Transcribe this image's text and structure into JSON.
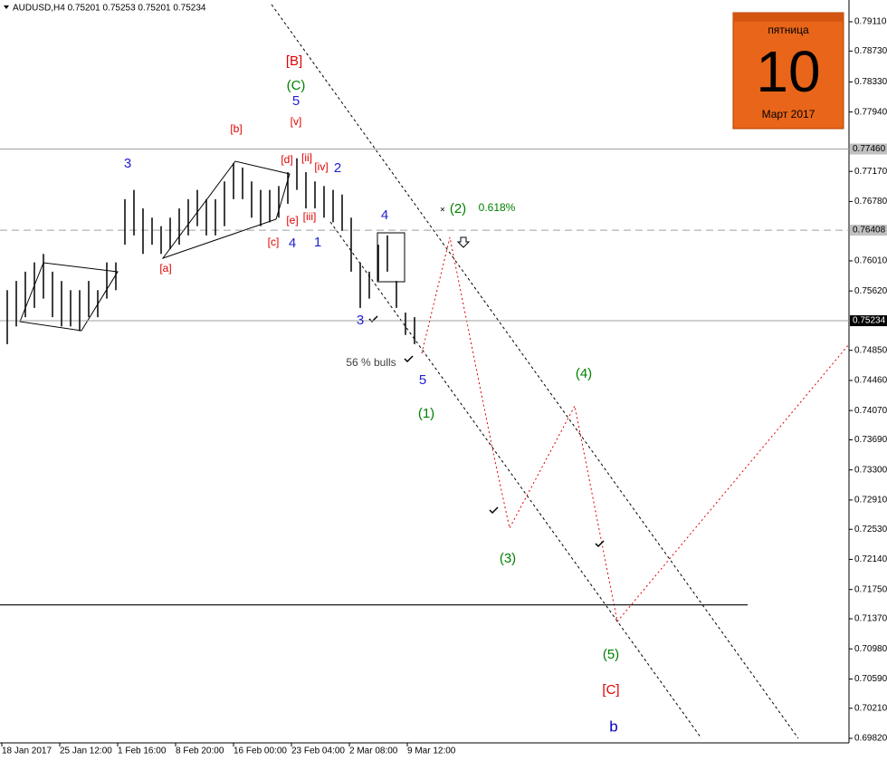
{
  "chart_data": {
    "type": "ohlc",
    "title": "AUDUSD,H4  0.75201 0.75253 0.75201 0.75234",
    "ylim": [
      0.6982,
      0.7911
    ],
    "yticks": [
      {
        "value": 0.7911,
        "label": "0.79110"
      },
      {
        "value": 0.7873,
        "label": "0.78730"
      },
      {
        "value": 0.7833,
        "label": "0.78330"
      },
      {
        "value": 0.7794,
        "label": "0.77940"
      },
      {
        "value": 0.7717,
        "label": "0.77170"
      },
      {
        "value": 0.7678,
        "label": "0.76780"
      },
      {
        "value": 0.7601,
        "label": "0.76010"
      },
      {
        "value": 0.7562,
        "label": "0.75620"
      },
      {
        "value": 0.7485,
        "label": "0.74850"
      },
      {
        "value": 0.7446,
        "label": "0.74460"
      },
      {
        "value": 0.7407,
        "label": "0.74070"
      },
      {
        "value": 0.7369,
        "label": "0.73690"
      },
      {
        "value": 0.733,
        "label": "0.73300"
      },
      {
        "value": 0.7291,
        "label": "0.72910"
      },
      {
        "value": 0.7253,
        "label": "0.72530"
      },
      {
        "value": 0.7214,
        "label": "0.72140"
      },
      {
        "value": 0.7175,
        "label": "0.71750"
      },
      {
        "value": 0.7137,
        "label": "0.71370"
      },
      {
        "value": 0.7098,
        "label": "0.70980"
      },
      {
        "value": 0.7059,
        "label": "0.70590"
      },
      {
        "value": 0.7021,
        "label": "0.70210"
      },
      {
        "value": 0.6982,
        "label": "0.69820"
      }
    ],
    "levels": [
      {
        "value": 0.7746,
        "label": "0.77460",
        "style": "solid"
      },
      {
        "value": 0.76408,
        "label": "0.76408",
        "style": "dashed"
      },
      {
        "value": 0.75234,
        "label": "0.75234",
        "style": "current"
      }
    ],
    "support_line": 0.7155,
    "x_labels": [
      "18 Jan 2017",
      "25 Jan 12:00",
      "1 Feb 16:00",
      "8 Feb 20:00",
      "16 Feb 00:00",
      "23 Feb 04:00",
      "2 Mar 08:00",
      "9 Mar 12:00"
    ],
    "series": [
      {
        "name": "AUDUSD",
        "color": "#000000",
        "high": [
          0.7563,
          0.7575,
          0.7587,
          0.7599,
          0.761,
          0.7587,
          0.7575,
          0.7563,
          0.7563,
          0.7575,
          0.7563,
          0.7599,
          0.7599,
          0.7681,
          0.7693,
          0.7669,
          0.7657,
          0.7646,
          0.7657,
          0.7669,
          0.7681,
          0.7693,
          0.7681,
          0.7681,
          0.7704,
          0.7728,
          0.7722,
          0.7704,
          0.7693,
          0.7693,
          0.7698,
          0.7716,
          0.7734,
          0.7716,
          0.7704,
          0.7698,
          0.7693,
          0.7687,
          0.7657,
          0.7599,
          0.7587,
          0.7622,
          0.7634,
          0.7575,
          0.7534,
          0.7528
        ],
        "low": [
          0.7493,
          0.7516,
          0.7528,
          0.754,
          0.7552,
          0.7528,
          0.7516,
          0.7516,
          0.751,
          0.7528,
          0.7528,
          0.7552,
          0.7563,
          0.7622,
          0.7634,
          0.761,
          0.7622,
          0.761,
          0.7616,
          0.7622,
          0.7634,
          0.7646,
          0.7634,
          0.7634,
          0.7646,
          0.7681,
          0.7681,
          0.7657,
          0.7646,
          0.7651,
          0.7657,
          0.7675,
          0.7693,
          0.7669,
          0.7669,
          0.7657,
          0.7651,
          0.764,
          0.7587,
          0.754,
          0.7552,
          0.7575,
          0.7587,
          0.754,
          0.7505,
          0.7493
        ]
      }
    ],
    "annotations": [
      {
        "text": "[B]",
        "color": "#e00000"
      },
      {
        "text": "(C)",
        "color": "#008000"
      },
      {
        "text": "5",
        "color": "#2020d0"
      },
      {
        "text": "[v]",
        "color": "#e00000"
      },
      {
        "text": "[b]",
        "color": "#e00000"
      },
      {
        "text": "3",
        "color": "#2020d0"
      },
      {
        "text": "[d]",
        "color": "#e00000"
      },
      {
        "text": "[ii]",
        "color": "#e00000"
      },
      {
        "text": "[iv]",
        "color": "#e00000"
      },
      {
        "text": "2",
        "color": "#2020d0"
      },
      {
        "text": "[e]",
        "color": "#e00000"
      },
      {
        "text": "[iii]",
        "color": "#e00000"
      },
      {
        "text": "[c]",
        "color": "#e00000"
      },
      {
        "text": "4",
        "color": "#2020d0"
      },
      {
        "text": "1",
        "color": "#2020d0"
      },
      {
        "text": "[a]",
        "color": "#e00000"
      },
      {
        "text": "4",
        "color": "#2020d0"
      },
      {
        "text": "(2)",
        "color": "#008000"
      },
      {
        "text": "0.618%",
        "color": "#008000"
      },
      {
        "text": "3",
        "color": "#2020d0"
      },
      {
        "text": "56 % bulls",
        "color": "#404040"
      },
      {
        "text": "5",
        "color": "#2020d0"
      },
      {
        "text": "(1)",
        "color": "#008000"
      },
      {
        "text": "(4)",
        "color": "#008000"
      },
      {
        "text": "(3)",
        "color": "#008000"
      },
      {
        "text": "(5)",
        "color": "#008000"
      },
      {
        "text": "[C]",
        "color": "#e00000"
      },
      {
        "text": "b",
        "color": "#0000c0"
      }
    ]
  },
  "calendar": {
    "weekday": "пятница",
    "day": "10",
    "month": "Март 2017"
  }
}
